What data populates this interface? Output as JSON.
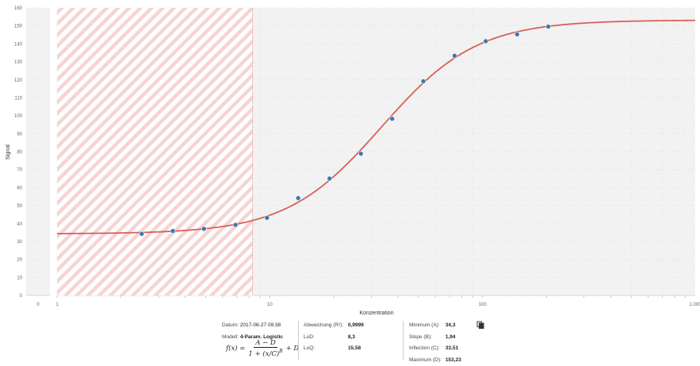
{
  "chart_data": {
    "type": "scatter",
    "xlabel": "Konzentration",
    "ylabel": "Signal",
    "xscale": "log",
    "xlim": [
      1,
      1000
    ],
    "ylim": [
      0,
      160
    ],
    "ytick_labels": [
      "0",
      "10",
      "20",
      "30",
      "40",
      "50",
      "60",
      "70",
      "80",
      "90",
      "100",
      "110",
      "120",
      "130",
      "140",
      "150",
      "160"
    ],
    "xtick_labels": [
      "1",
      "10",
      "100",
      "1.000"
    ],
    "left_axis_label": "0",
    "grid": true,
    "points": {
      "x": [
        2.5,
        3.5,
        4.9,
        6.9,
        9.7,
        13.6,
        19.1,
        26.8,
        37.6,
        52.7,
        73.9,
        103.6,
        145.4,
        203.9
      ],
      "y": [
        34.3,
        35.9,
        37.1,
        39.3,
        43.2,
        54.2,
        65.1,
        78.9,
        98.3,
        119.2,
        133.4,
        141.5,
        145.3,
        149.6
      ]
    },
    "fit": {
      "model": "4PL",
      "A": 34.3,
      "B": 1.94,
      "C": 33.51,
      "D": 153.23
    },
    "excluded_below_x": 8.3,
    "colors": {
      "curve": "#d9605a",
      "points": "#3a78b0",
      "hatch": "#f4caca",
      "plot_bg": "#f2f2f2"
    }
  },
  "info": {
    "datum_label": "Datum:",
    "datum_value": "2017-06-27 09:38",
    "modell_label": "Modell:",
    "modell_value": "4-Param. Logistic",
    "abweichung_label": "Abweichung (R²):",
    "abweichung_value": "0,9999",
    "lod_label": "LoD:",
    "lod_value": "8,3",
    "loq_label": "LoQ:",
    "loq_value": "15,58",
    "minimum_label": "Minimum (A):",
    "minimum_value": "34,3",
    "slope_label": "Slope (B):",
    "slope_value": "1,94",
    "inflection_label": "Inflection (C):",
    "inflection_value": "33,51",
    "maximum_label": "Maximum (D):",
    "maximum_value": "153,23",
    "copy_icon": "copy-icon"
  },
  "formula": {
    "lhs": "f(x) =",
    "num": "A − D",
    "den": "1 + (x/C)",
    "den_exp": "B",
    "tail": "+ D"
  }
}
